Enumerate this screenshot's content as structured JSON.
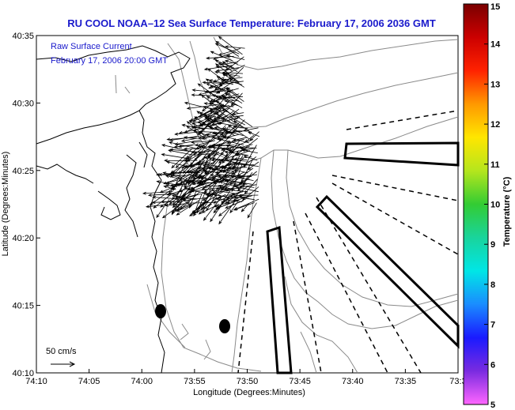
{
  "title": "RU COOL  NOAA–12  Sea Surface Temperature:  February 17, 2006 2036 GMT",
  "annotation": {
    "line1": "Raw Surface Current",
    "line2": "February 17, 2006 20:00 GMT"
  },
  "scale_label": "50 cm/s",
  "axes": {
    "xlabel": "Longitude (Degrees:Minutes)",
    "ylabel": "Latitude (Degrees:Minutes)",
    "xticks": [
      "74:10",
      "74:05",
      "74:00",
      "73:55",
      "73:50",
      "73:45",
      "73:40",
      "73:35",
      "73:3"
    ],
    "yticks": [
      "40:35",
      "40:30",
      "40:25",
      "40:20",
      "40:15",
      "40:10"
    ]
  },
  "colorbar": {
    "label": "Temperature (°C)",
    "ticks": [
      "15",
      "14",
      "13",
      "12",
      "11",
      "10",
      "9",
      "8",
      "7",
      "6",
      "5"
    ],
    "min": 5,
    "max": 15,
    "colors": [
      "#ff66ff",
      "#7a2be0",
      "#1a1aff",
      "#1a8cff",
      "#00e6e6",
      "#19d49c",
      "#33cc33",
      "#b5e61d",
      "#ffe600",
      "#ff9900",
      "#ff2200",
      "#cc0000",
      "#7a0000"
    ]
  }
}
